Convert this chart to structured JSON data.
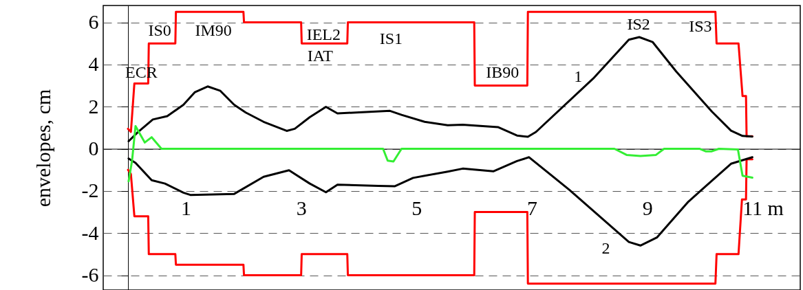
{
  "chart_data": {
    "type": "line",
    "ylabel": "envelopes, cm",
    "xlim": [
      -0.43,
      11.65
    ],
    "ylim": [
      -6.7,
      6.8
    ],
    "xticks": [
      1,
      3,
      5,
      7,
      9,
      {
        "value": 11,
        "label": "11 m"
      }
    ],
    "yticks": [
      6,
      4,
      2,
      0,
      -2,
      -4,
      -6
    ],
    "grid": "y",
    "series": [
      {
        "color": "#ff0000",
        "x": [
          0,
          0.05,
          0.11,
          0.35,
          0.36,
          0.82,
          0.83,
          2.0,
          2.01,
          3.0,
          3.01,
          3.8,
          3.81,
          6.0,
          6.01,
          6.92,
          6.93,
          10.18,
          10.2,
          10.58,
          10.65,
          10.71,
          10.72,
          10.82
        ],
        "values": [
          0.95,
          0.8,
          3.1,
          3.1,
          5.0,
          5.0,
          6.5,
          6.5,
          6.0,
          6.0,
          5.0,
          5.0,
          6.0,
          6.0,
          3.0,
          3.0,
          6.5,
          6.5,
          5.0,
          5.0,
          2.5,
          2.5,
          0.6,
          0.6
        ]
      },
      {
        "color": "#ff0000",
        "x": [
          0,
          0.05,
          0.11,
          0.35,
          0.36,
          0.82,
          0.83,
          2.0,
          2.01,
          3.0,
          3.01,
          3.8,
          3.81,
          6.0,
          6.01,
          6.92,
          6.93,
          10.18,
          10.2,
          10.58,
          10.64,
          10.71,
          10.72,
          10.82
        ],
        "values": [
          -1.0,
          -1.2,
          -3.2,
          -3.2,
          -5.0,
          -5.0,
          -5.5,
          -5.5,
          -6.0,
          -6.0,
          -5.0,
          -5.0,
          -6.0,
          -6.0,
          -3.0,
          -3.0,
          -6.4,
          -6.4,
          -5.0,
          -5.0,
          -2.4,
          -2.4,
          -0.5,
          -0.5
        ]
      },
      {
        "color": "#000000",
        "x": [
          0.01,
          0.17,
          0.43,
          0.68,
          0.96,
          1.16,
          1.38,
          1.6,
          1.84,
          2.04,
          2.35,
          2.75,
          2.89,
          3.15,
          3.43,
          3.63,
          3.95,
          4.54,
          4.74,
          5.14,
          5.54,
          5.8,
          6.41,
          6.74,
          6.93,
          7.07,
          8.06,
          8.68,
          8.86,
          9.09,
          9.5,
          10.12,
          10.45,
          10.65,
          10.82
        ],
        "values": [
          0.36,
          0.79,
          1.39,
          1.55,
          2.09,
          2.69,
          2.96,
          2.75,
          2.09,
          1.72,
          1.28,
          0.85,
          0.95,
          1.5,
          1.99,
          1.68,
          1.72,
          1.8,
          1.61,
          1.28,
          1.12,
          1.14,
          1.03,
          0.63,
          0.57,
          0.8,
          3.33,
          5.18,
          5.3,
          5.07,
          3.67,
          1.76,
          0.86,
          0.61,
          0.58
        ]
      },
      {
        "color": "#000000",
        "x": [
          0.01,
          0.13,
          0.41,
          0.64,
          0.96,
          1.08,
          1.84,
          2.35,
          2.79,
          3.15,
          3.43,
          3.63,
          4.34,
          4.62,
          4.94,
          5.54,
          5.8,
          6.33,
          6.74,
          6.95,
          7.65,
          8.68,
          8.88,
          9.17,
          9.71,
          10.45,
          10.82
        ],
        "values": [
          -0.46,
          -0.67,
          -1.49,
          -1.65,
          -2.08,
          -2.19,
          -2.14,
          -1.33,
          -1.02,
          -1.65,
          -2.06,
          -1.7,
          -1.76,
          -1.78,
          -1.38,
          -1.08,
          -0.94,
          -1.07,
          -0.58,
          -0.4,
          -1.95,
          -4.42,
          -4.59,
          -4.2,
          -2.51,
          -0.71,
          -0.4
        ]
      },
      {
        "color": "#33ee33",
        "x": [
          0.01,
          0.07,
          0.13,
          0.29,
          0.41,
          0.58,
          4.42,
          4.5,
          4.6,
          4.74,
          8.14,
          8.43,
          8.64,
          8.88,
          9.15,
          9.29,
          9.91,
          10.01,
          10.11,
          10.24,
          10.57,
          10.65,
          10.82
        ],
        "values": [
          -1.54,
          -0.56,
          1.08,
          0.3,
          0.55,
          0.0,
          0.0,
          -0.56,
          -0.6,
          0.0,
          0.0,
          0.0,
          -0.29,
          -0.34,
          -0.29,
          0.0,
          0.0,
          -0.12,
          -0.12,
          0.0,
          -0.03,
          -1.28,
          -1.37
        ]
      }
    ],
    "annotations": [
      "ECR",
      "IS0",
      "IM90",
      "IEL2",
      "IAT",
      "IS1",
      "IB90",
      "IS2",
      "IS3",
      "1",
      "2"
    ]
  }
}
